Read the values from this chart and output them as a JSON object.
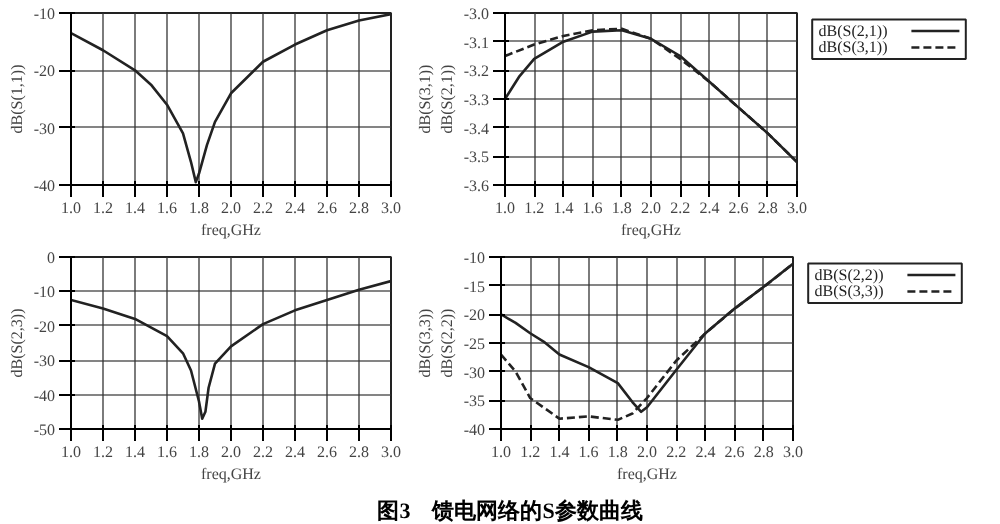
{
  "chart_data": [
    {
      "type": "line",
      "xlabel": "freq,GHz",
      "ylabel": "dB(S(1,1))",
      "xlim": [
        1.0,
        3.0
      ],
      "ylim": [
        -40,
        -10
      ],
      "grid": true,
      "xticks": [
        {
          "value": 1.0,
          "label": "1.0"
        },
        1.2,
        1.4,
        1.6,
        1.8,
        {
          "value": 2.0,
          "label": "2.0"
        },
        2.2,
        2.4,
        2.6,
        2.8,
        {
          "value": 3.0,
          "label": "3.0"
        }
      ],
      "yticks": [
        -40,
        -30,
        -20,
        -10
      ],
      "series": [
        {
          "color": "#222222",
          "line_style": "solid",
          "x": [
            1.0,
            1.2,
            1.4,
            1.5,
            1.6,
            1.7,
            1.75,
            1.78,
            1.8,
            1.85,
            1.9,
            2.0,
            2.2,
            2.4,
            2.6,
            2.8,
            3.0
          ],
          "values": [
            -13.5,
            -16.5,
            -20,
            -22.5,
            -26,
            -31,
            -36,
            -39.5,
            -38,
            -33,
            -29,
            -24,
            -18.5,
            -15.5,
            -13,
            -11.3,
            -10.2
          ]
        }
      ]
    },
    {
      "type": "line",
      "xlabel": "freq,GHz",
      "ylabel": "dB(S(3,1))\ndB(S(2,1))",
      "xlim": [
        1.0,
        3.0
      ],
      "ylim": [
        -3.6,
        -3.0
      ],
      "grid": true,
      "legend": "right",
      "xticks": [
        {
          "value": 1.0,
          "label": "1.0"
        },
        1.2,
        1.4,
        1.6,
        1.8,
        {
          "value": 2.0,
          "label": "2.0"
        },
        2.2,
        2.4,
        2.6,
        2.8,
        {
          "value": 3.0,
          "label": "3.0"
        }
      ],
      "yticks": [
        -3.6,
        -3.5,
        -3.4,
        -3.3,
        -3.2,
        -3.1,
        {
          "value": -3.0,
          "label": "-3.0"
        }
      ],
      "series": [
        {
          "name": "dB(S(2,1))",
          "color": "#222222",
          "line_style": "solid",
          "x": [
            1.0,
            1.1,
            1.2,
            1.4,
            1.6,
            1.8,
            2.0,
            2.2,
            2.4,
            2.6,
            2.8,
            3.0
          ],
          "values": [
            -3.3,
            -3.22,
            -3.16,
            -3.1,
            -3.065,
            -3.06,
            -3.09,
            -3.15,
            -3.24,
            -3.33,
            -3.42,
            -3.52
          ]
        },
        {
          "name": "dB(S(3,1))",
          "color": "#222222",
          "line_style": "dashed",
          "x": [
            1.0,
            1.2,
            1.4,
            1.6,
            1.8,
            2.0,
            2.2,
            2.4,
            2.6,
            2.8,
            3.0
          ],
          "values": [
            -3.15,
            -3.11,
            -3.08,
            -3.06,
            -3.055,
            -3.09,
            -3.16,
            -3.24,
            -3.33,
            -3.42,
            -3.52
          ]
        }
      ]
    },
    {
      "type": "line",
      "xlabel": "freq,GHz",
      "ylabel": "dB(S(2,3))",
      "xlim": [
        1.0,
        3.0
      ],
      "ylim": [
        -50,
        0
      ],
      "grid": true,
      "xticks": [
        {
          "value": 1.0,
          "label": "1.0"
        },
        1.2,
        1.4,
        1.6,
        1.8,
        {
          "value": 2.0,
          "label": "2.0"
        },
        2.2,
        2.4,
        2.6,
        2.8,
        {
          "value": 3.0,
          "label": "3.0"
        }
      ],
      "yticks": [
        -50,
        -40,
        -30,
        -20,
        -10,
        0
      ],
      "series": [
        {
          "color": "#222222",
          "line_style": "solid",
          "x": [
            1.0,
            1.2,
            1.4,
            1.6,
            1.7,
            1.75,
            1.8,
            1.82,
            1.84,
            1.86,
            1.9,
            2.0,
            2.2,
            2.4,
            2.6,
            2.8,
            3.0
          ],
          "values": [
            -12.5,
            -15,
            -18,
            -23,
            -28,
            -33,
            -42,
            -47,
            -45,
            -38,
            -31,
            -26,
            -19.5,
            -15.5,
            -12.5,
            -9.5,
            -7
          ]
        }
      ],
      "annotations": [
        "图3　馈电网络的S参数曲线"
      ]
    },
    {
      "type": "line",
      "xlabel": "freq,GHz",
      "ylabel": "dB(S(3,3))\ndB(S(2,2))",
      "xlim": [
        1.0,
        3.0
      ],
      "ylim": [
        -40,
        -10
      ],
      "grid": true,
      "legend": "right",
      "xticks": [
        {
          "value": 1.0,
          "label": "1.0"
        },
        1.2,
        1.4,
        1.6,
        1.8,
        {
          "value": 2.0,
          "label": "2.0"
        },
        2.2,
        2.4,
        2.6,
        2.8,
        {
          "value": 3.0,
          "label": "3.0"
        }
      ],
      "yticks": [
        -40,
        -35,
        -30,
        -25,
        -20,
        -15,
        -10
      ],
      "series": [
        {
          "name": "dB(S(2,2))",
          "color": "#222222",
          "line_style": "solid",
          "x": [
            1.0,
            1.1,
            1.2,
            1.3,
            1.4,
            1.6,
            1.8,
            1.9,
            1.96,
            2.0,
            2.2,
            2.4,
            2.6,
            2.8,
            3.0
          ],
          "values": [
            -20,
            -21.5,
            -23.3,
            -24.9,
            -27,
            -29.2,
            -32,
            -35.3,
            -37,
            -36.2,
            -29.7,
            -23.3,
            -19,
            -15.2,
            -11.2
          ]
        },
        {
          "name": "dB(S(3,3))",
          "color": "#222222",
          "line_style": "dashed",
          "x": [
            1.0,
            1.1,
            1.2,
            1.4,
            1.6,
            1.8,
            1.9,
            2.0,
            2.2,
            2.4,
            2.6,
            2.8,
            3.0
          ],
          "values": [
            -27,
            -30,
            -34.6,
            -38.2,
            -37.8,
            -38.4,
            -37.3,
            -34.6,
            -28.1,
            -23.3,
            -19,
            -15.2,
            -11.2
          ]
        }
      ]
    }
  ]
}
